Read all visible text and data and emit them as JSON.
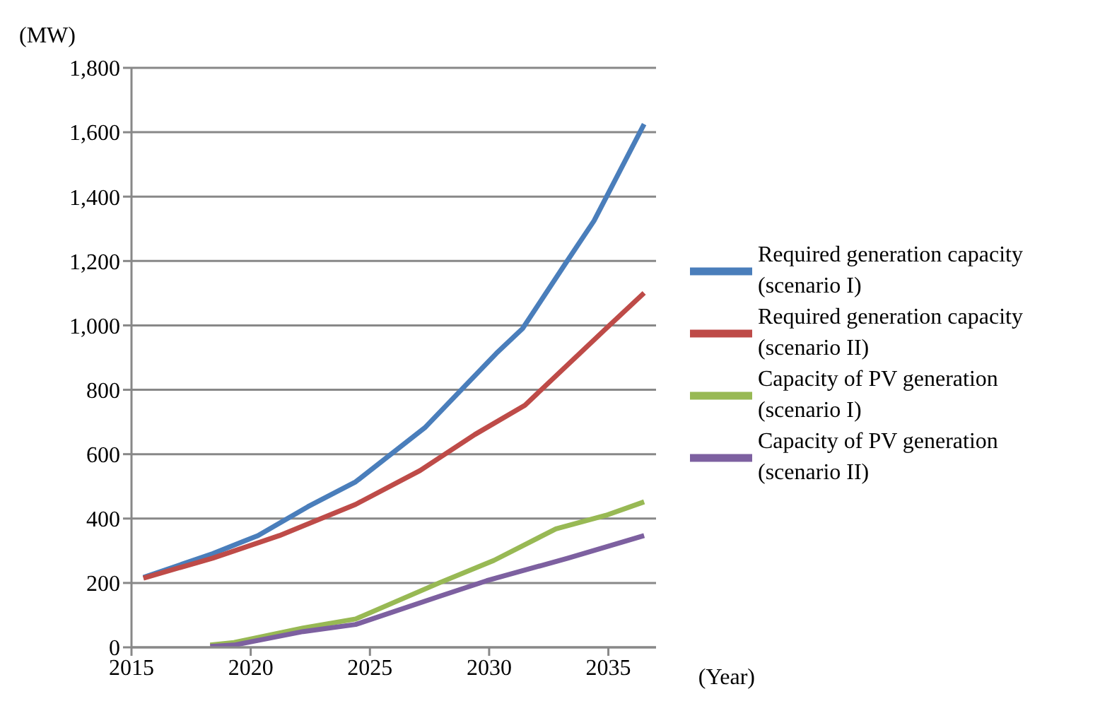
{
  "chart_data": {
    "type": "line",
    "xlabel": "(Year)",
    "ylabel": "(MW)",
    "xlim": [
      2015,
      2037
    ],
    "xticks": [
      2015,
      2020,
      2025,
      2030,
      2035
    ],
    "ylim": [
      0,
      1800
    ],
    "yticks": [
      0,
      200,
      400,
      600,
      800,
      {
        "value": 1000,
        "label": "1,000"
      },
      {
        "value": 1200,
        "label": "1,200"
      },
      {
        "value": 1400,
        "label": "1,400"
      },
      {
        "value": 1600,
        "label": "1,600"
      },
      {
        "value": 1800,
        "label": "1,800"
      }
    ],
    "grid": "y",
    "legend": "right",
    "marker": "none",
    "line_style": "solid",
    "series": [
      {
        "name": "Required generation capacity (scenario I)",
        "color": "#4a7ebb",
        "x": [
          2015.5,
          2018.4,
          2020.3,
          2022.4,
          2024.4,
          2027.3,
          2030.3,
          2031.4,
          2033.2,
          2034.4,
          2036.5
        ],
        "values": [
          217,
          291,
          347,
          437,
          514,
          682,
          913,
          990,
          1192,
          1325,
          1625
        ]
      },
      {
        "name": "Required generation capacity (scenario II)",
        "color": "#be4b48",
        "x": [
          2015.5,
          2018.4,
          2021.2,
          2024.4,
          2027.1,
          2029.4,
          2031.5,
          2033.3,
          2034.9,
          2036.5
        ],
        "values": [
          215,
          277,
          347,
          444,
          549,
          661,
          752,
          878,
          990,
          1101
        ]
      },
      {
        "name": "Capacity of PV generation (scenario I)",
        "color": "#98b954",
        "x": [
          2018.3,
          2019.3,
          2022.2,
          2024.4,
          2027.9,
          2030.2,
          2032.8,
          2034.9,
          2036.5
        ],
        "values": [
          7,
          15,
          60,
          88,
          200,
          270,
          368,
          410,
          452
        ]
      },
      {
        "name": "Capacity of PV generation (scenario II)",
        "color": "#7d60a0",
        "x": [
          2018.3,
          2019.3,
          2022.2,
          2024.4,
          2027.9,
          2029.9,
          2033.3,
          2036.5
        ],
        "values": [
          3,
          7,
          49,
          71,
          158,
          207,
          277,
          347
        ]
      }
    ]
  }
}
